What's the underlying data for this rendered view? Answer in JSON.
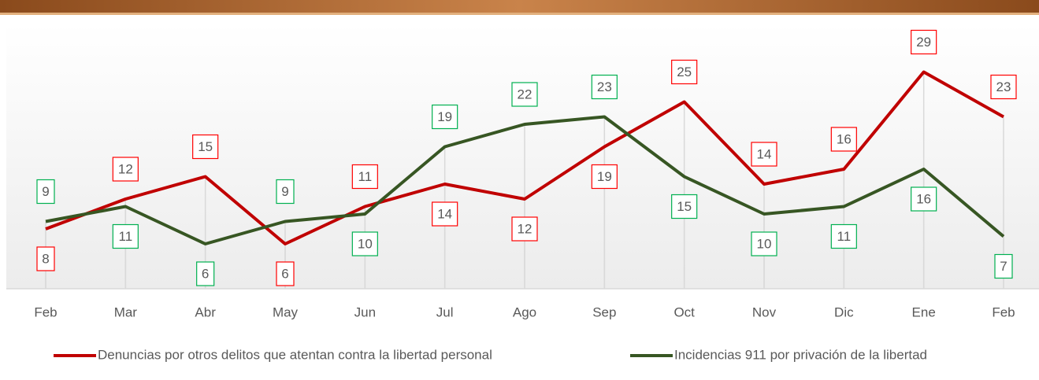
{
  "chart_data": {
    "type": "line",
    "categories": [
      "Feb",
      "Mar",
      "Abr",
      "May",
      "Jun",
      "Jul",
      "Ago",
      "Sep",
      "Oct",
      "Nov",
      "Dic",
      "Ene",
      "Feb"
    ],
    "series": [
      {
        "name": "Denuncias por otros delitos que atentan contra la libertad personal",
        "color": "#c00000",
        "values": [
          8,
          12,
          15,
          6,
          11,
          14,
          12,
          19,
          25,
          14,
          16,
          29,
          23
        ]
      },
      {
        "name": "Incidencias 911 por privación de la libertad",
        "color": "#375623",
        "values": [
          9,
          11,
          6,
          9,
          10,
          19,
          22,
          23,
          15,
          10,
          11,
          16,
          7
        ]
      }
    ],
    "ylim": [
      0,
      36
    ]
  }
}
